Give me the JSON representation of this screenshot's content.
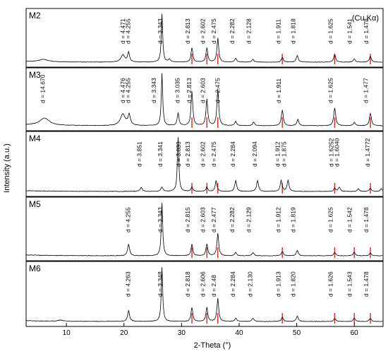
{
  "chart_data": {
    "type": "line",
    "title": "",
    "annotation": "(Cu Kα)",
    "xlabel": "2-Theta (°)",
    "ylabel": "Intensity (a.u.)",
    "xlim": [
      3,
      65
    ],
    "xticks": [
      10,
      20,
      30,
      40,
      50,
      60
    ],
    "grid": false,
    "legend": "none",
    "colors": {
      "trace": "#000000",
      "peak_marker": "#d62728",
      "frame": "#000000"
    },
    "panels": [
      {
        "label": "M2",
        "peak_labels": [
          {
            "x": 20.4,
            "text": "d = 4.471"
          },
          {
            "x": 21.3,
            "text": "d = 4.255"
          },
          {
            "x": 26.9,
            "text": "d = 3.343"
          },
          {
            "x": 31.7,
            "text": "d = 2.813"
          },
          {
            "x": 34.3,
            "text": "d = 2.602"
          },
          {
            "x": 36.2,
            "text": "d = 2.475"
          },
          {
            "x": 39.4,
            "text": "d = 2.282"
          },
          {
            "x": 42.3,
            "text": "d = 2.128"
          },
          {
            "x": 47.4,
            "text": "d = 1.911"
          },
          {
            "x": 50.0,
            "text": "d = 1.818"
          },
          {
            "x": 56.5,
            "text": "d = 1.625"
          },
          {
            "x": 59.8,
            "text": "d = 1.541"
          },
          {
            "x": 62.7,
            "text": "d = 1.478"
          }
        ],
        "peaks": [
          {
            "x": 6.0,
            "h": 0.05,
            "w": 0.9
          },
          {
            "x": 19.8,
            "h": 0.15,
            "w": 0.4
          },
          {
            "x": 20.8,
            "h": 0.2,
            "w": 0.2
          },
          {
            "x": 26.6,
            "h": 1.0,
            "w": 0.15
          },
          {
            "x": 27.9,
            "h": 0.06,
            "w": 0.2
          },
          {
            "x": 31.8,
            "h": 0.3,
            "w": 0.18
          },
          {
            "x": 34.4,
            "h": 0.3,
            "w": 0.18
          },
          {
            "x": 36.3,
            "h": 0.5,
            "w": 0.18
          },
          {
            "x": 39.4,
            "h": 0.08,
            "w": 0.2
          },
          {
            "x": 42.4,
            "h": 0.06,
            "w": 0.2
          },
          {
            "x": 47.5,
            "h": 0.1,
            "w": 0.2
          },
          {
            "x": 50.1,
            "h": 0.14,
            "w": 0.2
          },
          {
            "x": 56.6,
            "h": 0.16,
            "w": 0.2
          },
          {
            "x": 60.0,
            "h": 0.07,
            "w": 0.2
          },
          {
            "x": 62.8,
            "h": 0.12,
            "w": 0.2
          }
        ],
        "markers": [
          31.8,
          34.4,
          36.3,
          47.5,
          56.6,
          62.8
        ]
      },
      {
        "label": "M3",
        "peak_labels": [
          {
            "x": 6.5,
            "text": "d = 14.670"
          },
          {
            "x": 20.4,
            "text": "d = 4.476"
          },
          {
            "x": 21.3,
            "text": "d = 4.255"
          },
          {
            "x": 25.8,
            "text": "d = 3.343"
          },
          {
            "x": 29.9,
            "text": "d = 3.035"
          },
          {
            "x": 31.9,
            "text": "d = 2.813"
          },
          {
            "x": 34.3,
            "text": "d = 2.603"
          },
          {
            "x": 36.9,
            "text": "d = 2.475"
          },
          {
            "x": 47.5,
            "text": "d = 1.911"
          },
          {
            "x": 56.5,
            "text": "d = 1.625"
          },
          {
            "x": 62.6,
            "text": "d = 1.477"
          }
        ],
        "peaks": [
          {
            "x": 6.2,
            "h": 0.14,
            "w": 1.0
          },
          {
            "x": 19.8,
            "h": 0.22,
            "w": 0.5
          },
          {
            "x": 20.9,
            "h": 0.2,
            "w": 0.25
          },
          {
            "x": 26.6,
            "h": 1.0,
            "w": 0.15
          },
          {
            "x": 29.4,
            "h": 0.24,
            "w": 0.18
          },
          {
            "x": 31.8,
            "h": 0.65,
            "w": 0.18
          },
          {
            "x": 34.4,
            "h": 0.5,
            "w": 0.18
          },
          {
            "x": 36.3,
            "h": 0.7,
            "w": 0.18
          },
          {
            "x": 39.4,
            "h": 0.08,
            "w": 0.2
          },
          {
            "x": 42.5,
            "h": 0.07,
            "w": 0.2
          },
          {
            "x": 47.5,
            "h": 0.3,
            "w": 0.2
          },
          {
            "x": 50.2,
            "h": 0.12,
            "w": 0.2
          },
          {
            "x": 56.6,
            "h": 0.34,
            "w": 0.2
          },
          {
            "x": 60.0,
            "h": 0.06,
            "w": 0.2
          },
          {
            "x": 62.8,
            "h": 0.24,
            "w": 0.2
          }
        ],
        "markers": [
          31.8,
          34.4,
          36.3,
          47.5,
          56.6,
          62.8
        ]
      },
      {
        "label": "M4",
        "peak_labels": [
          {
            "x": 23.3,
            "text": "d = 3.851"
          },
          {
            "x": 26.9,
            "text": "d = 3.341"
          },
          {
            "x": 30.1,
            "text": "d = 3.033"
          },
          {
            "x": 31.7,
            "text": "d = 2.813"
          },
          {
            "x": 34.3,
            "text": "d = 2.602"
          },
          {
            "x": 36.2,
            "text": "d = 2.475"
          },
          {
            "x": 39.5,
            "text": "d = 2.284"
          },
          {
            "x": 43.3,
            "text": "d = 2.094"
          },
          {
            "x": 47.3,
            "text": "d = 1.912"
          },
          {
            "x": 48.4,
            "text": "d = 1.875"
          },
          {
            "x": 56.6,
            "text": "d = 1.6252"
          },
          {
            "x": 57.6,
            "text": "d = 1.6040"
          },
          {
            "x": 62.9,
            "text": "d = 1.4772"
          }
        ],
        "peaks": [
          {
            "x": 23.0,
            "h": 0.08,
            "w": 0.2
          },
          {
            "x": 26.6,
            "h": 0.08,
            "w": 0.2
          },
          {
            "x": 29.4,
            "h": 1.0,
            "w": 0.15
          },
          {
            "x": 31.8,
            "h": 0.08,
            "w": 0.18
          },
          {
            "x": 34.4,
            "h": 0.08,
            "w": 0.18
          },
          {
            "x": 36.0,
            "h": 0.2,
            "w": 0.18
          },
          {
            "x": 39.4,
            "h": 0.2,
            "w": 0.2
          },
          {
            "x": 43.2,
            "h": 0.2,
            "w": 0.2
          },
          {
            "x": 47.3,
            "h": 0.2,
            "w": 0.2
          },
          {
            "x": 48.5,
            "h": 0.2,
            "w": 0.2
          },
          {
            "x": 56.6,
            "h": 0.06,
            "w": 0.2
          },
          {
            "x": 57.4,
            "h": 0.08,
            "w": 0.2
          },
          {
            "x": 60.7,
            "h": 0.05,
            "w": 0.2
          },
          {
            "x": 62.8,
            "h": 0.06,
            "w": 0.2
          },
          {
            "x": 64.7,
            "h": 0.05,
            "w": 0.2
          }
        ],
        "markers": [
          31.8,
          34.4,
          36.3,
          47.5,
          56.6,
          62.8
        ]
      },
      {
        "label": "M5",
        "peak_labels": [
          {
            "x": 21.3,
            "text": "d = 4.255"
          },
          {
            "x": 26.9,
            "text": "d = 3.343"
          },
          {
            "x": 31.7,
            "text": "d = 2.815"
          },
          {
            "x": 34.3,
            "text": "d = 2.603"
          },
          {
            "x": 36.2,
            "text": "d = 2.477"
          },
          {
            "x": 39.4,
            "text": "d = 2.282"
          },
          {
            "x": 42.3,
            "text": "d = 2.129"
          },
          {
            "x": 47.4,
            "text": "d = 1.912"
          },
          {
            "x": 50.0,
            "text": "d = 1.819"
          },
          {
            "x": 56.5,
            "text": "d = 1.625"
          },
          {
            "x": 59.8,
            "text": "d = 1.542"
          },
          {
            "x": 62.7,
            "text": "d = 1.478"
          }
        ],
        "peaks": [
          {
            "x": 20.8,
            "h": 0.22,
            "w": 0.2
          },
          {
            "x": 26.6,
            "h": 1.0,
            "w": 0.15
          },
          {
            "x": 31.8,
            "h": 0.22,
            "w": 0.18
          },
          {
            "x": 34.4,
            "h": 0.22,
            "w": 0.18
          },
          {
            "x": 36.3,
            "h": 0.42,
            "w": 0.18
          },
          {
            "x": 39.4,
            "h": 0.06,
            "w": 0.2
          },
          {
            "x": 42.4,
            "h": 0.06,
            "w": 0.2
          },
          {
            "x": 47.5,
            "h": 0.08,
            "w": 0.2
          },
          {
            "x": 50.1,
            "h": 0.1,
            "w": 0.2
          },
          {
            "x": 56.6,
            "h": 0.06,
            "w": 0.2
          },
          {
            "x": 60.0,
            "h": 0.07,
            "w": 0.2
          },
          {
            "x": 62.8,
            "h": 0.05,
            "w": 0.2
          }
        ],
        "markers": [
          31.8,
          34.4,
          36.3,
          47.5,
          56.6,
          60.0,
          62.8
        ]
      },
      {
        "label": "M6",
        "peak_labels": [
          {
            "x": 21.3,
            "text": "d = 4.263"
          },
          {
            "x": 26.9,
            "text": "d = 3.348"
          },
          {
            "x": 31.7,
            "text": "d = 2.818"
          },
          {
            "x": 34.3,
            "text": "d = 2.606"
          },
          {
            "x": 36.2,
            "text": "d = 2.48"
          },
          {
            "x": 39.5,
            "text": "d = 2.284"
          },
          {
            "x": 42.5,
            "text": "d = 2.130"
          },
          {
            "x": 47.4,
            "text": "d = 1.913"
          },
          {
            "x": 50.0,
            "text": "d = 1.820"
          },
          {
            "x": 56.5,
            "text": "d = 1.626"
          },
          {
            "x": 59.8,
            "text": "d = 1.543"
          },
          {
            "x": 62.7,
            "text": "d = 1.478"
          }
        ],
        "peaks": [
          {
            "x": 9.0,
            "h": 0.02,
            "w": 0.5
          },
          {
            "x": 20.8,
            "h": 0.2,
            "w": 0.2
          },
          {
            "x": 26.6,
            "h": 1.0,
            "w": 0.15
          },
          {
            "x": 31.8,
            "h": 0.26,
            "w": 0.18
          },
          {
            "x": 34.4,
            "h": 0.26,
            "w": 0.18
          },
          {
            "x": 36.3,
            "h": 0.42,
            "w": 0.18
          },
          {
            "x": 39.4,
            "h": 0.06,
            "w": 0.2
          },
          {
            "x": 42.4,
            "h": 0.06,
            "w": 0.2
          },
          {
            "x": 47.5,
            "h": 0.08,
            "w": 0.2
          },
          {
            "x": 50.1,
            "h": 0.1,
            "w": 0.2
          },
          {
            "x": 56.6,
            "h": 0.06,
            "w": 0.2
          },
          {
            "x": 60.0,
            "h": 0.06,
            "w": 0.2
          },
          {
            "x": 62.8,
            "h": 0.06,
            "w": 0.2
          }
        ],
        "markers": [
          31.8,
          34.4,
          36.3,
          47.5,
          56.6,
          60.0,
          62.8
        ]
      }
    ]
  }
}
